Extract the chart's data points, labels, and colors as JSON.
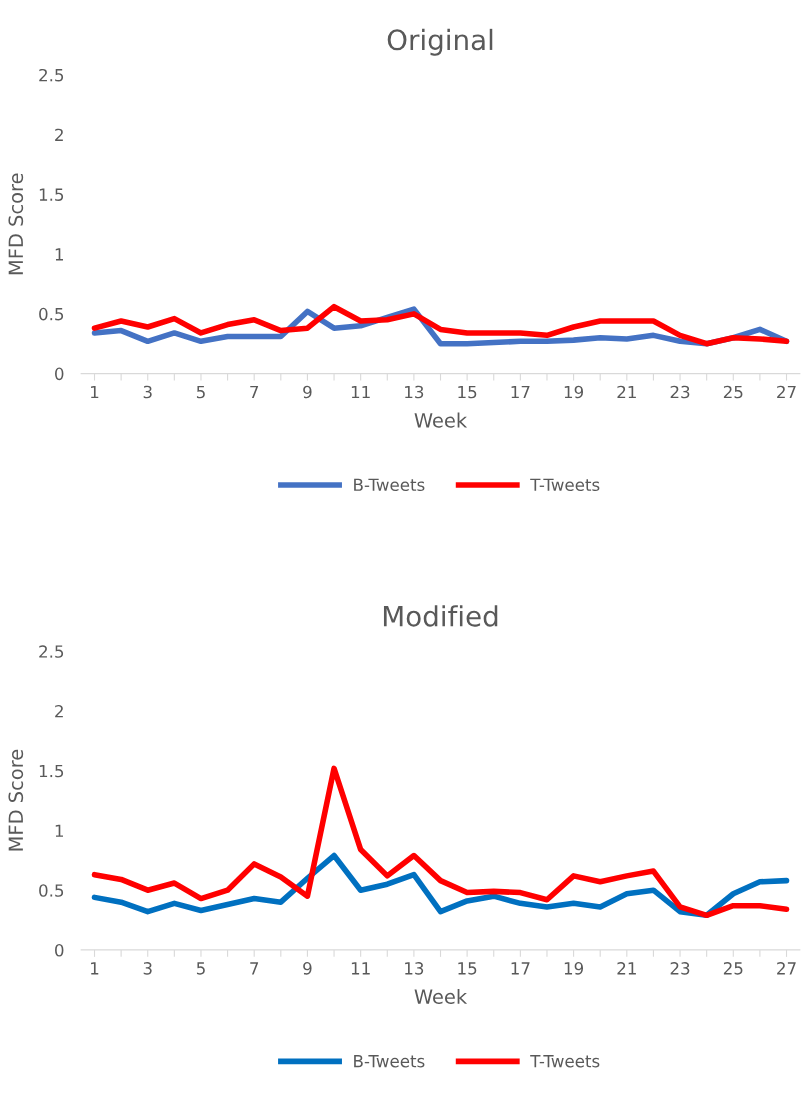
{
  "chart_data": [
    {
      "type": "line",
      "title": "Original",
      "xlabel": "Week",
      "ylabel": "MFD Score",
      "categories": [
        "1",
        null,
        "3",
        null,
        "5",
        null,
        "7",
        null,
        "9",
        null,
        "11",
        null,
        "13",
        null,
        "15",
        null,
        "17",
        null,
        "19",
        null,
        "21",
        null,
        "23",
        null,
        "25",
        null,
        "27"
      ],
      "series": [
        {
          "name": "B-Tweets",
          "color": "#4472c4",
          "values": [
            0.34,
            0.36,
            0.27,
            0.34,
            0.27,
            0.31,
            0.31,
            0.31,
            0.52,
            0.38,
            0.4,
            0.47,
            0.54,
            0.25,
            0.25,
            0.26,
            0.27,
            0.27,
            0.28,
            0.3,
            0.29,
            0.32,
            0.27,
            0.25,
            0.3,
            0.37,
            0.27
          ]
        },
        {
          "name": "T-Tweets",
          "color": "#ff0000",
          "values": [
            0.38,
            0.44,
            0.39,
            0.46,
            0.34,
            0.41,
            0.45,
            0.36,
            0.38,
            0.56,
            0.44,
            0.45,
            0.5,
            0.37,
            0.34,
            0.34,
            0.34,
            0.32,
            0.39,
            0.44,
            0.44,
            0.44,
            0.32,
            0.25,
            0.3,
            0.29,
            0.27
          ]
        }
      ],
      "ylim": [
        0,
        2.5
      ],
      "yticks": [
        0,
        0.5,
        1,
        1.5,
        2,
        2.5
      ],
      "grid": false,
      "legend": "bottom"
    },
    {
      "type": "line",
      "title": "Modified",
      "xlabel": "Week",
      "ylabel": "MFD Score",
      "categories": [
        "1",
        null,
        "3",
        null,
        "5",
        null,
        "7",
        null,
        "9",
        null,
        "11",
        null,
        "13",
        null,
        "15",
        null,
        "17",
        null,
        "19",
        null,
        "21",
        null,
        "23",
        null,
        "25",
        null,
        "27"
      ],
      "series": [
        {
          "name": "B-Tweets",
          "color": "#0070c0",
          "values": [
            0.44,
            0.4,
            0.32,
            0.39,
            0.33,
            0.38,
            0.43,
            0.4,
            0.6,
            0.79,
            0.5,
            0.55,
            0.63,
            0.32,
            0.41,
            0.45,
            0.39,
            0.36,
            0.39,
            0.36,
            0.47,
            0.5,
            0.32,
            0.29,
            0.47,
            0.57,
            0.58
          ]
        },
        {
          "name": "T-Tweets",
          "color": "#ff0000",
          "values": [
            0.63,
            0.59,
            0.5,
            0.56,
            0.43,
            0.5,
            0.72,
            0.61,
            0.45,
            1.52,
            0.84,
            0.62,
            0.79,
            0.58,
            0.48,
            0.49,
            0.48,
            0.42,
            0.62,
            0.57,
            0.62,
            0.66,
            0.36,
            0.29,
            0.37,
            0.37,
            0.34
          ]
        }
      ],
      "ylim": [
        0,
        2.5
      ],
      "yticks": [
        0,
        0.5,
        1,
        1.5,
        2,
        2.5
      ],
      "grid": false,
      "legend": "bottom"
    }
  ]
}
